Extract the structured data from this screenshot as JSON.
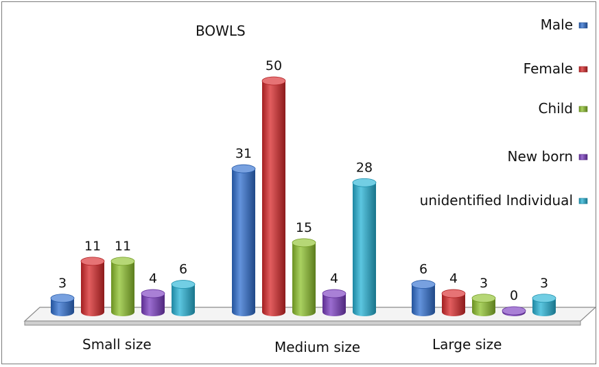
{
  "chart_data": {
    "type": "bar",
    "title": "BOWLS",
    "categories": [
      "Small size",
      "Medium size",
      "Large size"
    ],
    "series": [
      {
        "name": "Male",
        "color": "#2f6fd0",
        "values": [
          3,
          31,
          6
        ]
      },
      {
        "name": "Female",
        "color": "#d8282a",
        "values": [
          11,
          50,
          4
        ]
      },
      {
        "name": "Child",
        "color": "#8ec12c",
        "values": [
          11,
          15,
          3
        ]
      },
      {
        "name": "New born",
        "color": "#7a3cc0",
        "values": [
          4,
          4,
          0
        ]
      },
      {
        "name": "unidentified Individual",
        "color": "#26b3d6",
        "values": [
          6,
          28,
          3
        ]
      }
    ],
    "ylim": [
      0,
      50
    ],
    "legend_position": "right",
    "grid": false,
    "style": "3d-cylinder"
  }
}
